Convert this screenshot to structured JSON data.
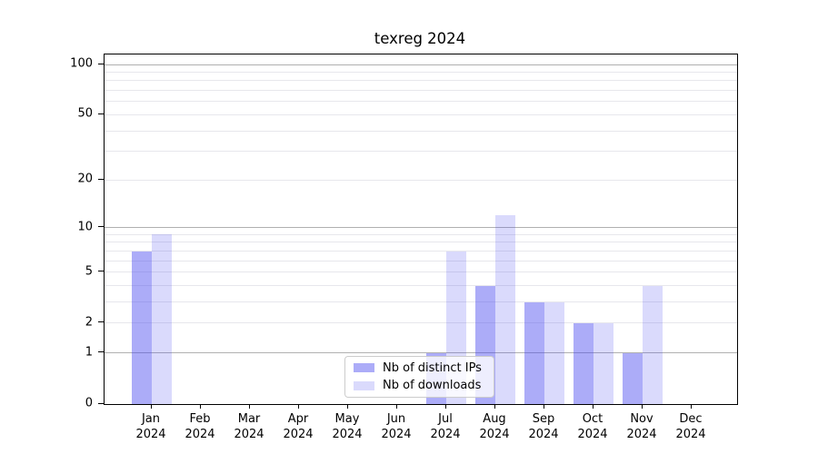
{
  "title": "texreg 2024",
  "chart_data": {
    "type": "bar",
    "title": "texreg 2024",
    "categories": [
      "Jan",
      "Feb",
      "Mar",
      "Apr",
      "May",
      "Jun",
      "Jul",
      "Aug",
      "Sep",
      "Oct",
      "Nov",
      "Dec"
    ],
    "x_tick_year": "2024",
    "series": [
      {
        "name": "Nb of distinct IPs",
        "color": "rgba(70,70,240,0.45)",
        "values": [
          7,
          0,
          0,
          0,
          0,
          0,
          1,
          4,
          3,
          2,
          1,
          0
        ]
      },
      {
        "name": "Nb of downloads",
        "color": "rgba(70,70,240,0.20)",
        "values": [
          9,
          0,
          0,
          0,
          0,
          0,
          7,
          12,
          3,
          2,
          4,
          0
        ]
      }
    ],
    "yscale": "log1p",
    "ylim": [
      0,
      100
    ],
    "y_major_ticks": [
      0,
      1,
      2,
      5,
      10,
      20,
      50,
      100
    ],
    "y_major_gridlines": [
      1,
      10,
      100
    ],
    "y_minor_gridlines": [
      2,
      3,
      4,
      5,
      6,
      7,
      8,
      9,
      20,
      30,
      40,
      50,
      60,
      70,
      80,
      90
    ],
    "grid": true,
    "legend_position": "lower center"
  },
  "colors": {
    "spine": "#000000",
    "grid_major": "#b0b0b0",
    "grid_minor": "#e7e7ec",
    "legend_border": "#cccccc"
  }
}
